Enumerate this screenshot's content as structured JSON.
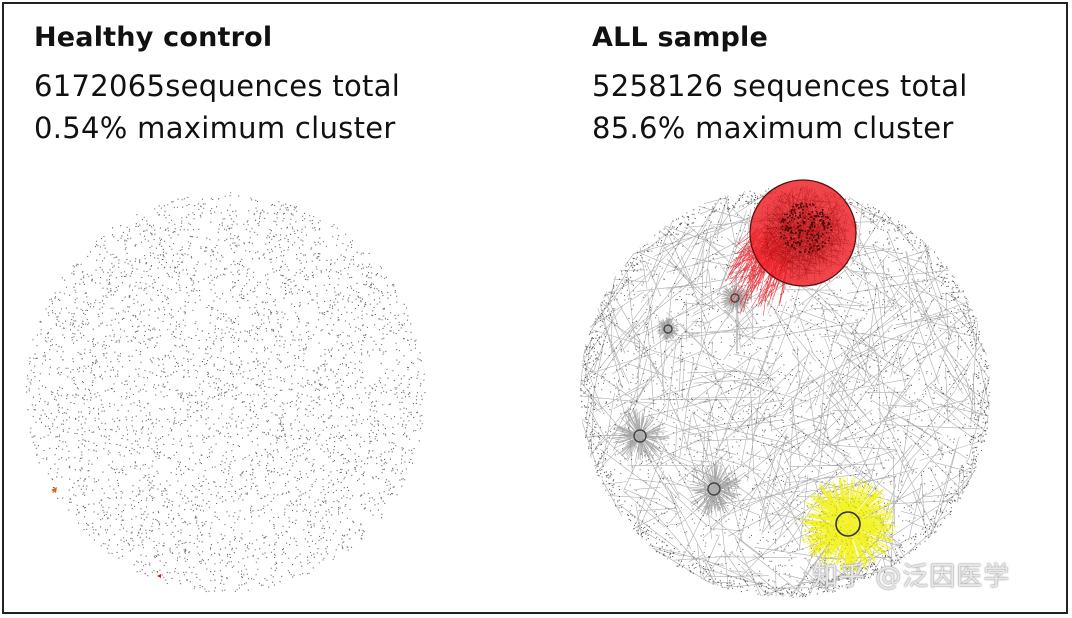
{
  "left_panel": {
    "title": "Healthy control",
    "sequences_line": "6172065sequences  total",
    "cluster_line": "0.54% maximum cluster"
  },
  "right_panel": {
    "title": "ALL sample",
    "sequences_line": "5258126 sequences total",
    "cluster_line": "85.6% maximum cluster"
  },
  "watermark": "知乎 @泛因医学",
  "colors": {
    "dot": "#3a3a3a",
    "edge": "#8c8c8c",
    "main_cluster": "#ee1c24",
    "secondary_cluster": "#f2f21a",
    "minor_cluster": "#999999",
    "healthy_marker_orange": "#d2691e",
    "healthy_marker_red": "#cc2200"
  }
}
